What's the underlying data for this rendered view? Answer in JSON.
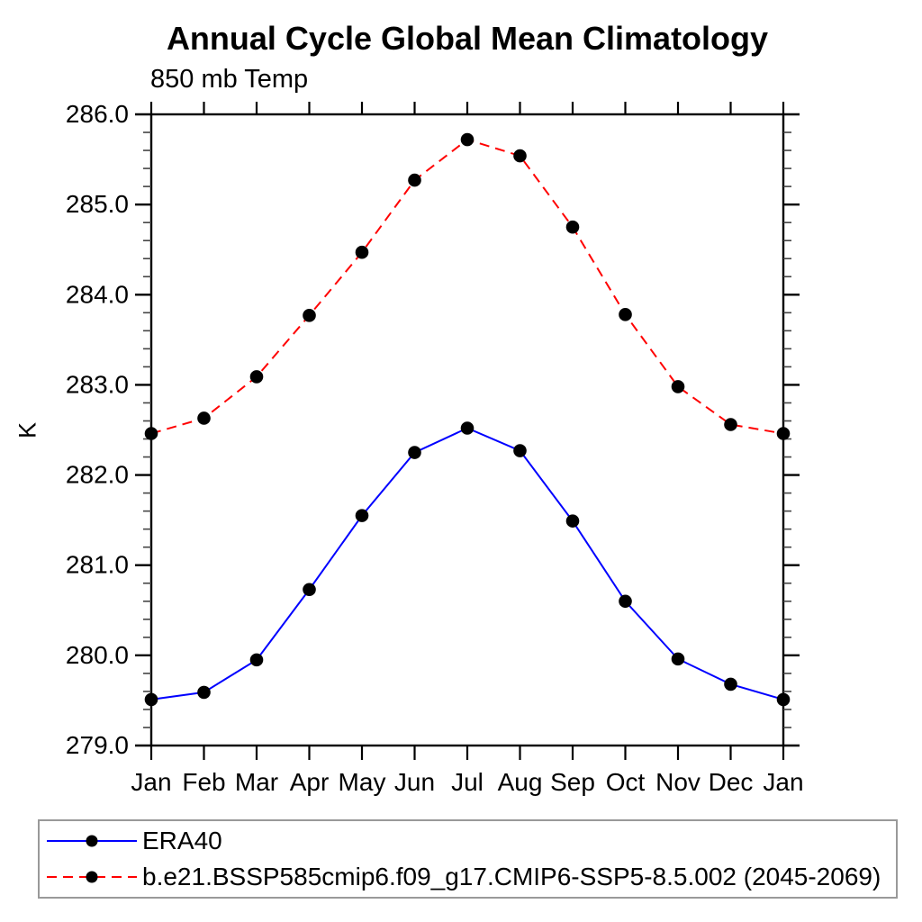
{
  "chart_data": {
    "type": "line",
    "title": "Annual Cycle Global Mean Climatology",
    "subtitle": "850 mb Temp",
    "ylabel": "K",
    "xlabel": "",
    "categories": [
      "Jan",
      "Feb",
      "Mar",
      "Apr",
      "May",
      "Jun",
      "Jul",
      "Aug",
      "Sep",
      "Oct",
      "Nov",
      "Dec",
      "Jan"
    ],
    "ylim": [
      279.0,
      286.0
    ],
    "ytick_major_step": 1.0,
    "ytick_minor_step": 0.2,
    "ytick_labels": [
      "279.0",
      "280.0",
      "281.0",
      "282.0",
      "283.0",
      "284.0",
      "285.0",
      "286.0"
    ],
    "grid": false,
    "legend_position": "bottom-left-box",
    "frame_color": "#000000",
    "minor_tick_color": "#444444",
    "marker": "filled-circle",
    "marker_color": "#000000",
    "series": [
      {
        "name": "ERA40",
        "color": "#0000ff",
        "line_style": "solid",
        "values": [
          279.51,
          279.59,
          279.95,
          280.73,
          281.55,
          282.25,
          282.52,
          282.27,
          281.49,
          280.6,
          279.96,
          279.68,
          279.51
        ]
      },
      {
        "name": "b.e21.BSSP585cmip6.f09_g17.CMIP6-SSP5-8.5.002 (2045-2069)",
        "color": "#ff0000",
        "line_style": "dashed",
        "values": [
          282.46,
          282.63,
          283.09,
          283.77,
          284.47,
          285.27,
          285.72,
          285.54,
          284.75,
          283.78,
          282.98,
          282.56,
          282.46
        ]
      }
    ]
  }
}
